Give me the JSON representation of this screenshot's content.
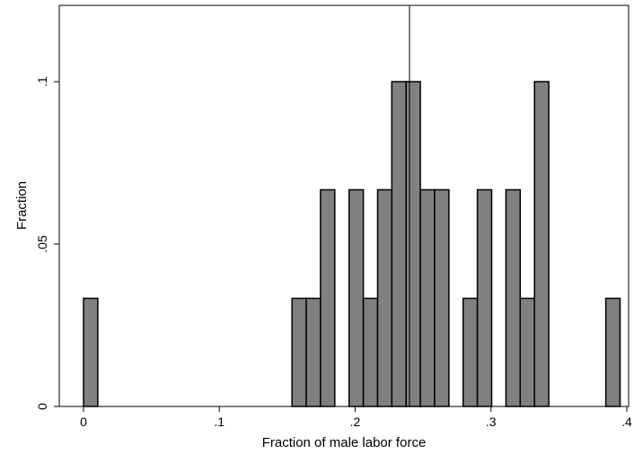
{
  "chart_data": {
    "type": "bar",
    "subtype": "histogram",
    "xlabel": "Fraction of male labor force",
    "ylabel": "Fraction",
    "xlim": [
      -0.025,
      0.4
    ],
    "ylim": [
      0,
      0.125
    ],
    "xticks": [
      {
        "value": 0,
        "label": "0"
      },
      {
        "value": 0.1,
        "label": ".1"
      },
      {
        "value": 0.2,
        "label": ".2"
      },
      {
        "value": 0.3,
        "label": ".3"
      },
      {
        "value": 0.4,
        "label": ".4"
      }
    ],
    "yticks": [
      {
        "value": 0,
        "label": "0"
      },
      {
        "value": 0.05,
        "label": ".05"
      },
      {
        "value": 0.1,
        "label": ".1"
      }
    ],
    "bin_width": 0.0105,
    "bins": [
      {
        "x": 0.0,
        "value": 0.0333
      },
      {
        "x": 0.1535,
        "value": 0.0333
      },
      {
        "x": 0.164,
        "value": 0.0333
      },
      {
        "x": 0.1745,
        "value": 0.0667
      },
      {
        "x": 0.1955,
        "value": 0.0667
      },
      {
        "x": 0.206,
        "value": 0.0333
      },
      {
        "x": 0.2165,
        "value": 0.0667
      },
      {
        "x": 0.227,
        "value": 0.1
      },
      {
        "x": 0.2375,
        "value": 0.1
      },
      {
        "x": 0.248,
        "value": 0.0667
      },
      {
        "x": 0.2585,
        "value": 0.0667
      },
      {
        "x": 0.2795,
        "value": 0.0333
      },
      {
        "x": 0.29,
        "value": 0.0667
      },
      {
        "x": 0.311,
        "value": 0.0667
      },
      {
        "x": 0.3215,
        "value": 0.0333
      },
      {
        "x": 0.332,
        "value": 0.1
      },
      {
        "x": 0.3845,
        "value": 0.0333
      }
    ],
    "reference_line": {
      "x": 0.24
    },
    "grid": false,
    "colors": {
      "bar_fill": "#808080",
      "bar_stroke": "#000000"
    }
  }
}
